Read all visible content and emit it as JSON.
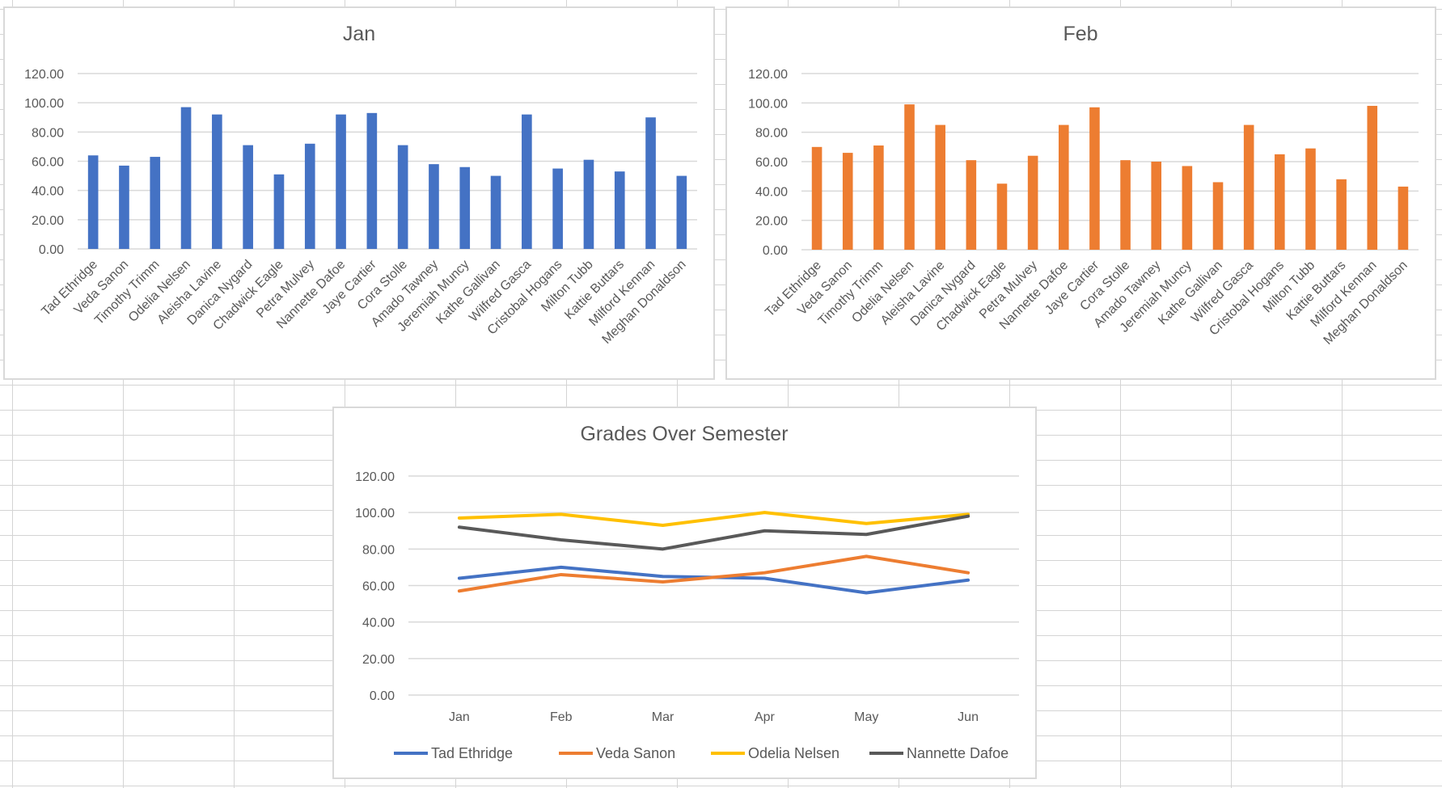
{
  "chart_data": [
    {
      "type": "bar",
      "title": "Jan",
      "color": "#4472c4",
      "ylim": [
        0,
        120
      ],
      "yticks": [
        "0.00",
        "20.00",
        "40.00",
        "60.00",
        "80.00",
        "100.00",
        "120.00"
      ],
      "grid": true,
      "categories": [
        "Tad Ethridge",
        "Veda Sanon",
        "Timothy Trimm",
        "Odelia Nelsen",
        "Aleisha Lavine",
        "Danica Nygard",
        "Chadwick Eagle",
        "Petra Mulvey",
        "Nannette Dafoe",
        "Jaye Cartier",
        "Cora Stolle",
        "Amado Tawney",
        "Jeremiah Muncy",
        "Kathe Gallivan",
        "Wilfred Gasca",
        "Cristobal Hogans",
        "Milton Tubb",
        "Kattie Buttars",
        "Milford Kennan",
        "Meghan Donaldson"
      ],
      "values": [
        64,
        57,
        63,
        97,
        92,
        71,
        51,
        72,
        92,
        93,
        71,
        58,
        56,
        50,
        92,
        55,
        61,
        53,
        90,
        50
      ]
    },
    {
      "type": "bar",
      "title": "Feb",
      "color": "#ed7d31",
      "ylim": [
        0,
        120
      ],
      "yticks": [
        "0.00",
        "20.00",
        "40.00",
        "60.00",
        "80.00",
        "100.00",
        "120.00"
      ],
      "grid": true,
      "categories": [
        "Tad Ethridge",
        "Veda Sanon",
        "Timothy Trimm",
        "Odelia Nelsen",
        "Aleisha Lavine",
        "Danica Nygard",
        "Chadwick Eagle",
        "Petra Mulvey",
        "Nannette Dafoe",
        "Jaye Cartier",
        "Cora Stolle",
        "Amado Tawney",
        "Jeremiah Muncy",
        "Kathe Gallivan",
        "Wilfred Gasca",
        "Cristobal Hogans",
        "Milton Tubb",
        "Kattie Buttars",
        "Milford Kennan",
        "Meghan Donaldson"
      ],
      "values": [
        70,
        66,
        71,
        99,
        85,
        61,
        45,
        64,
        85,
        97,
        61,
        60,
        57,
        46,
        85,
        65,
        69,
        48,
        98,
        43
      ]
    },
    {
      "type": "line",
      "title": "Grades Over Semester",
      "ylim": [
        0,
        120
      ],
      "yticks": [
        "0.00",
        "20.00",
        "40.00",
        "60.00",
        "80.00",
        "100.00",
        "120.00"
      ],
      "grid": true,
      "legend": "bottom",
      "categories": [
        "Jan",
        "Feb",
        "Mar",
        "Apr",
        "May",
        "Jun"
      ],
      "series": [
        {
          "name": "Tad Ethridge",
          "color": "#4472c4",
          "values": [
            64,
            70,
            65,
            64,
            56,
            63
          ]
        },
        {
          "name": "Veda Sanon",
          "color": "#ed7d31",
          "values": [
            57,
            66,
            62,
            67,
            76,
            67
          ]
        },
        {
          "name": "Odelia Nelsen",
          "color": "#ffc000",
          "values": [
            97,
            99,
            93,
            100,
            94,
            99
          ]
        },
        {
          "name": "Nannette Dafoe",
          "color": "#595959",
          "values": [
            92,
            85,
            80,
            90,
            88,
            98
          ]
        }
      ]
    }
  ]
}
